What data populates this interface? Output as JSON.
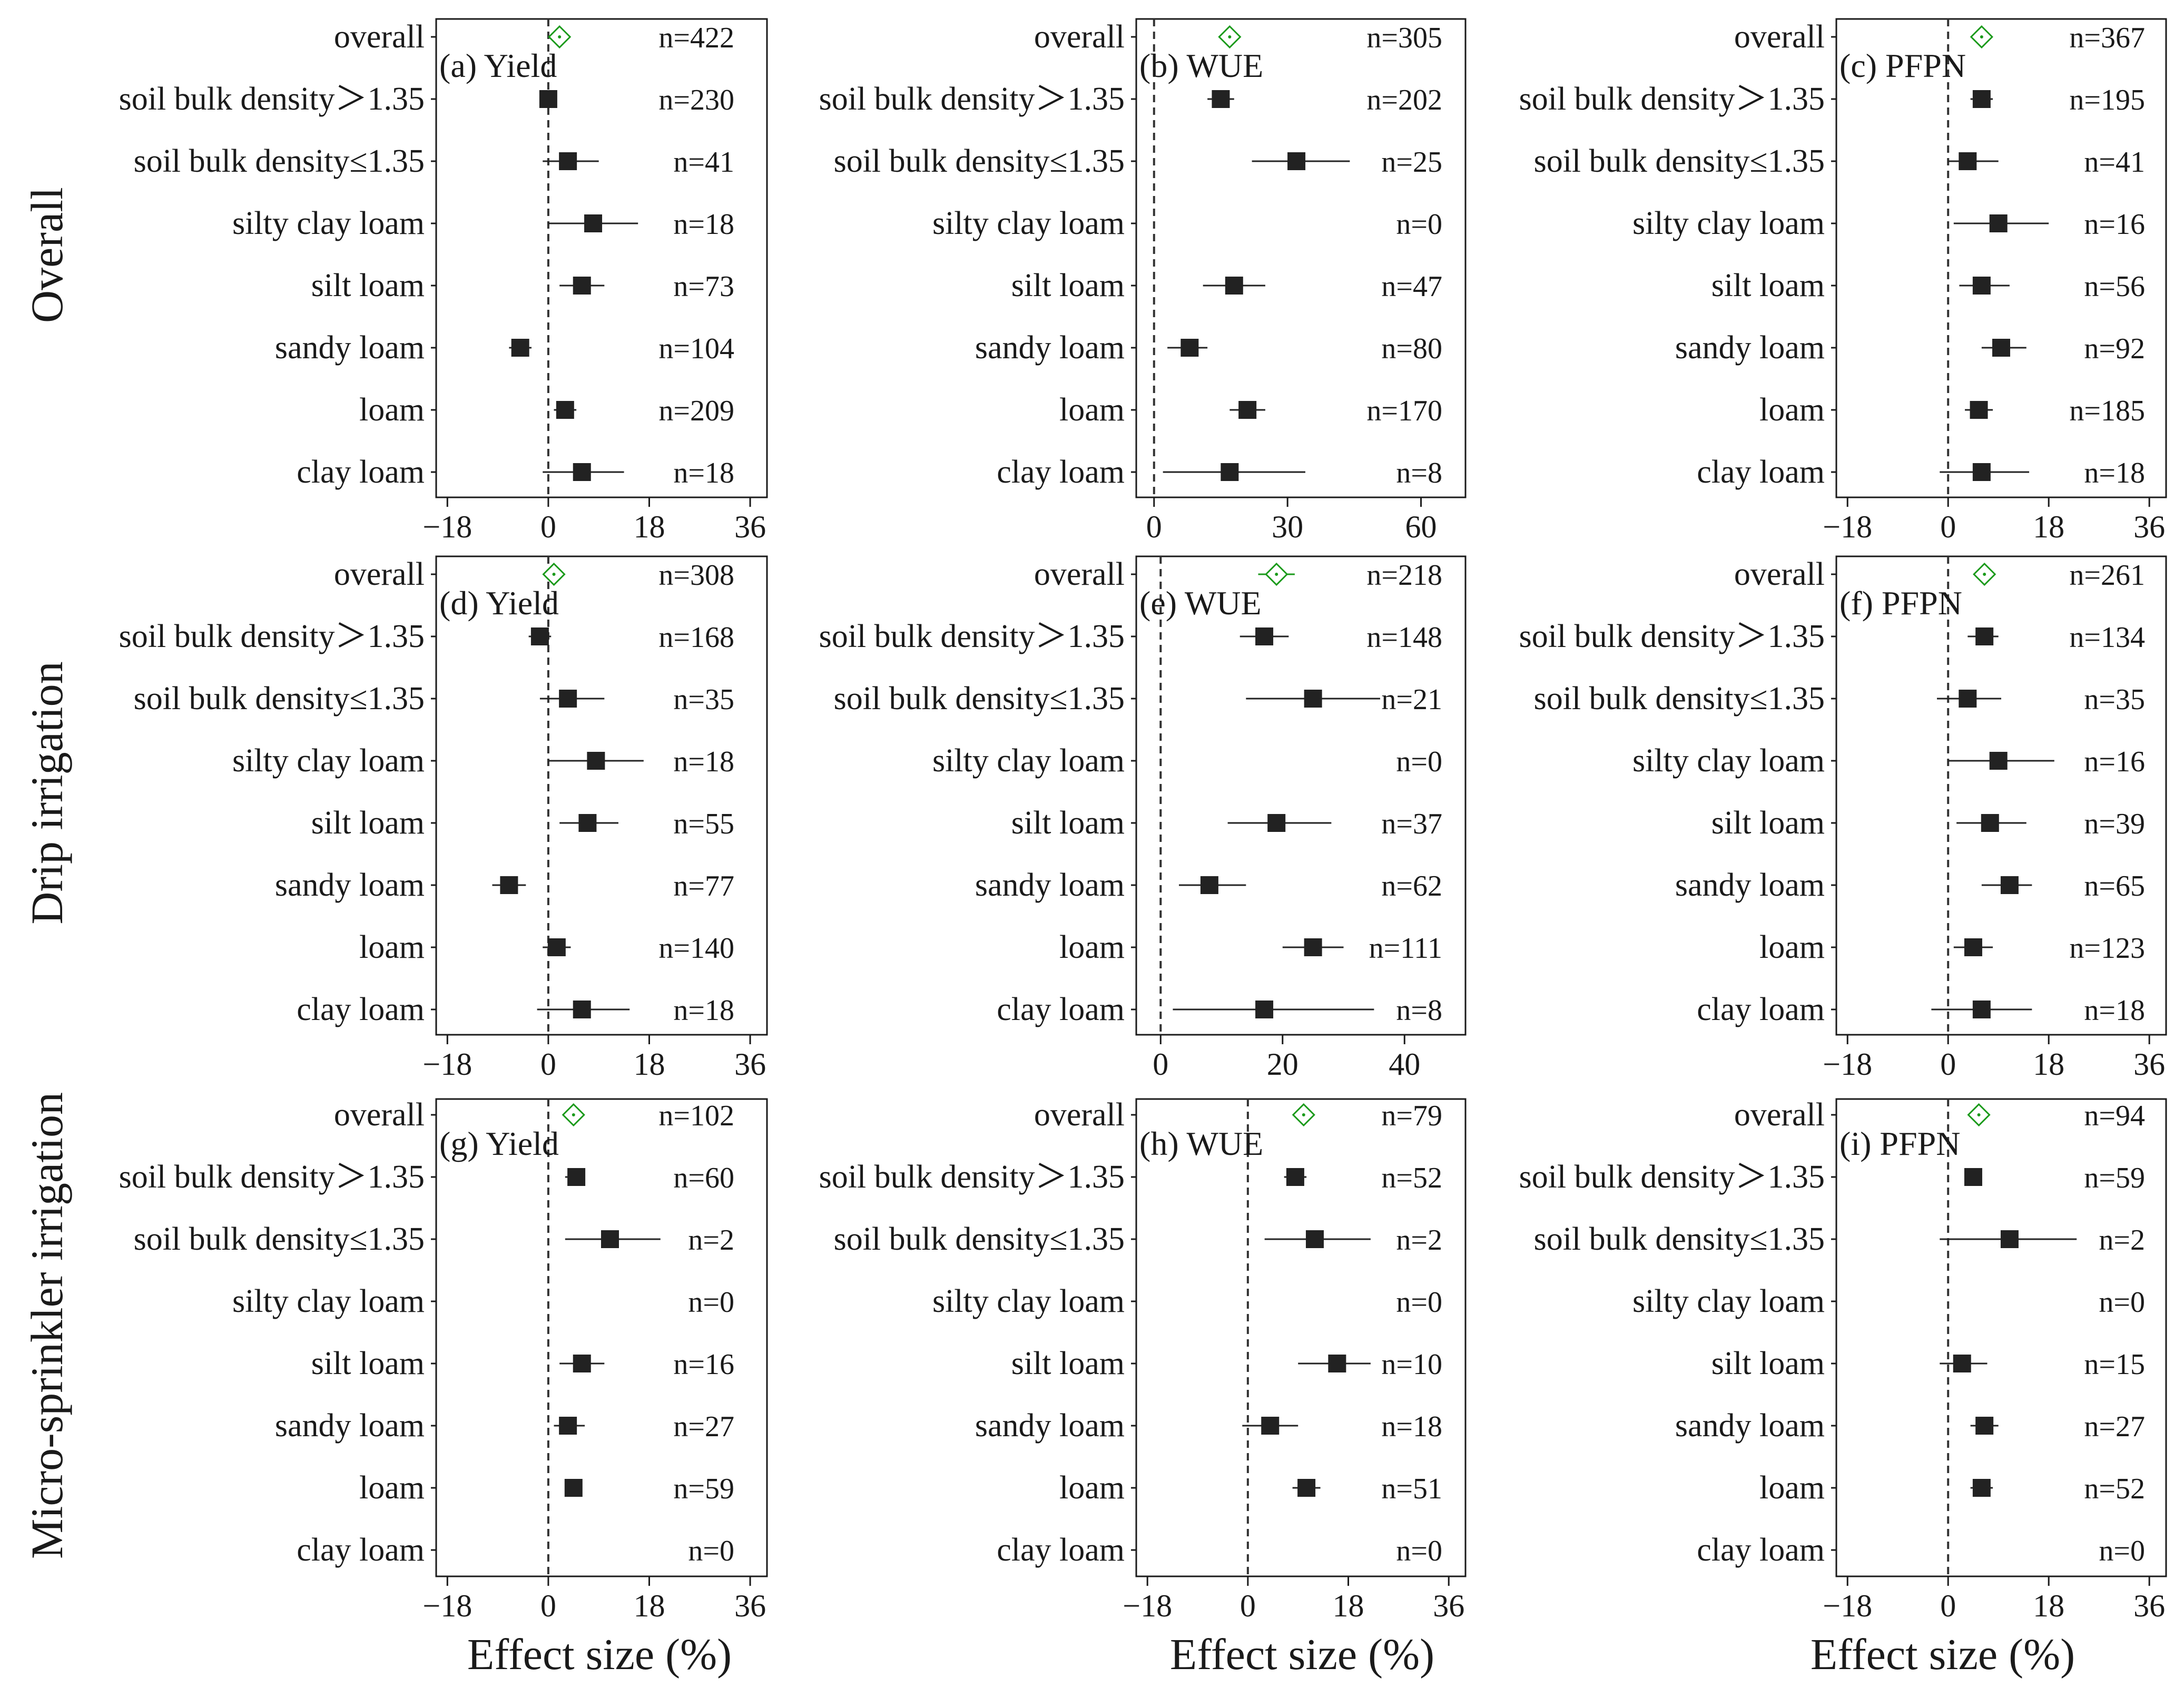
{
  "row_labels": [
    "Overall",
    "Drip irrigation",
    "Micro-sprinkler irrigation"
  ],
  "xlabel": "Effect size (%)",
  "categories": [
    "overall",
    "soil bulk density＞1.35",
    "soil bulk density≤1.35",
    "silty clay loam",
    "silt loam",
    "sandy loam",
    "loam",
    "clay loam"
  ],
  "colors": {
    "point": "#222222",
    "overall": "#1a9a1a",
    "frame": "#1a1a1a"
  },
  "chart_data": [
    {
      "type": "forest",
      "panel_label": "(a) Yield",
      "xlim": [
        -20,
        39
      ],
      "xticks": [
        -18,
        0,
        18,
        36
      ],
      "xtick_labels": [
        "−18",
        "0",
        "18",
        "36"
      ],
      "means": [
        2,
        0,
        3.5,
        8,
        6,
        -5,
        3,
        6
      ],
      "ci_low": [
        0.5,
        -1.5,
        -1,
        0,
        2,
        -7,
        1,
        -1
      ],
      "ci_high": [
        3.5,
        1.5,
        9,
        16,
        10,
        -3,
        5,
        13.5
      ],
      "n": [
        "n=422",
        "n=230",
        "n=41",
        "n=18",
        "n=73",
        "n=104",
        "n=209",
        "n=18"
      ]
    },
    {
      "type": "forest",
      "panel_label": "(b) WUE",
      "xlim": [
        -4,
        70
      ],
      "xticks": [
        0,
        30,
        60
      ],
      "xtick_labels": [
        "0",
        "30",
        "60"
      ],
      "means": [
        17,
        15,
        32,
        null,
        18,
        8,
        21,
        17
      ],
      "ci_low": [
        15,
        12,
        22,
        null,
        11,
        3,
        17,
        2
      ],
      "ci_high": [
        19,
        18,
        44,
        null,
        25,
        12,
        25,
        34
      ],
      "n": [
        "n=305",
        "n=202",
        "n=25",
        "n=0",
        "n=47",
        "n=80",
        "n=170",
        "n=8"
      ]
    },
    {
      "type": "forest",
      "panel_label": "(c) PFPN",
      "xlim": [
        -20,
        39
      ],
      "xticks": [
        -18,
        0,
        18,
        36
      ],
      "xtick_labels": [
        "−18",
        "0",
        "18",
        "36"
      ],
      "means": [
        6,
        6,
        3.5,
        9,
        6,
        9.5,
        5.5,
        6
      ],
      "ci_low": [
        4.5,
        4,
        0,
        1,
        2,
        6,
        3,
        -1.5
      ],
      "ci_high": [
        7.5,
        8,
        9,
        18,
        11,
        14,
        8,
        14.5
      ],
      "n": [
        "n=367",
        "n=195",
        "n=41",
        "n=16",
        "n=56",
        "n=92",
        "n=185",
        "n=18"
      ]
    },
    {
      "type": "forest",
      "panel_label": "(d) Yield",
      "xlim": [
        -20,
        39
      ],
      "xticks": [
        -18,
        0,
        18,
        36
      ],
      "xtick_labels": [
        "−18",
        "0",
        "18",
        "36"
      ],
      "means": [
        1,
        -1.5,
        3.5,
        8.5,
        7,
        -7,
        1.5,
        6
      ],
      "ci_low": [
        -0.5,
        -3.5,
        -1.5,
        0,
        2,
        -10,
        -1,
        -2
      ],
      "ci_high": [
        2.5,
        0.5,
        10,
        17,
        12.5,
        -4,
        4,
        14.5
      ],
      "n": [
        "n=308",
        "n=168",
        "n=35",
        "n=18",
        "n=55",
        "n=77",
        "n=140",
        "n=18"
      ]
    },
    {
      "type": "forest",
      "panel_label": "(e) WUE",
      "xlim": [
        -4,
        50
      ],
      "xticks": [
        0,
        20,
        40
      ],
      "xtick_labels": [
        "0",
        "20",
        "40"
      ],
      "means": [
        19,
        17,
        25,
        null,
        19,
        8,
        25,
        17
      ],
      "ci_low": [
        16,
        13,
        14,
        null,
        11,
        3,
        20,
        2
      ],
      "ci_high": [
        22,
        21,
        36,
        null,
        28,
        14,
        30,
        35
      ],
      "n": [
        "n=218",
        "n=148",
        "n=21",
        "n=0",
        "n=37",
        "n=62",
        "n=111",
        "n=8"
      ]
    },
    {
      "type": "forest",
      "panel_label": "(f) PFPN",
      "xlim": [
        -20,
        39
      ],
      "xticks": [
        -18,
        0,
        18,
        36
      ],
      "xtick_labels": [
        "−18",
        "0",
        "18",
        "36"
      ],
      "means": [
        6.5,
        6.5,
        3.5,
        9,
        7.5,
        11,
        4.5,
        6
      ],
      "ci_low": [
        5,
        3.5,
        -2,
        0,
        1.5,
        6,
        1,
        -3
      ],
      "ci_high": [
        8,
        9,
        9.5,
        19,
        14,
        15,
        8,
        15
      ],
      "n": [
        "n=261",
        "n=134",
        "n=35",
        "n=16",
        "n=39",
        "n=65",
        "n=123",
        "n=18"
      ]
    },
    {
      "type": "forest",
      "panel_label": "(g) Yield",
      "xlim": [
        -20,
        39
      ],
      "xticks": [
        -18,
        0,
        18,
        36
      ],
      "xtick_labels": [
        "−18",
        "0",
        "18",
        "36"
      ],
      "means": [
        4.5,
        5,
        11,
        null,
        6,
        3.5,
        4.5,
        null
      ],
      "ci_low": [
        3,
        3,
        3,
        null,
        2,
        1,
        3,
        null
      ],
      "ci_high": [
        6,
        6.5,
        20,
        null,
        10,
        6.5,
        6,
        null
      ],
      "n": [
        "n=102",
        "n=60",
        "n=2",
        "n=0",
        "n=16",
        "n=27",
        "n=59",
        "n=0"
      ]
    },
    {
      "type": "forest",
      "panel_label": "(h) WUE",
      "xlim": [
        -20,
        39
      ],
      "xticks": [
        -18,
        0,
        18,
        36
      ],
      "xtick_labels": [
        "−18",
        "0",
        "18",
        "36"
      ],
      "means": [
        10,
        8.5,
        12,
        null,
        16,
        4,
        10.5,
        null
      ],
      "ci_low": [
        8.5,
        6.5,
        3,
        null,
        9,
        -1,
        8,
        null
      ],
      "ci_high": [
        11.5,
        10.5,
        22,
        null,
        22,
        9,
        13,
        null
      ],
      "n": [
        "n=79",
        "n=52",
        "n=2",
        "n=0",
        "n=10",
        "n=18",
        "n=51",
        "n=0"
      ]
    },
    {
      "type": "forest",
      "panel_label": "(i) PFPN",
      "xlim": [
        -20,
        39
      ],
      "xticks": [
        -18,
        0,
        18,
        36
      ],
      "xtick_labels": [
        "−18",
        "0",
        "18",
        "36"
      ],
      "means": [
        5.5,
        4.5,
        11,
        null,
        2.5,
        6.5,
        6,
        null
      ],
      "ci_low": [
        4,
        3,
        -1.5,
        null,
        -1.5,
        4,
        4,
        null
      ],
      "ci_high": [
        7,
        6,
        23,
        null,
        7,
        9,
        8,
        null
      ],
      "n": [
        "n=94",
        "n=59",
        "n=2",
        "n=0",
        "n=15",
        "n=27",
        "n=52",
        "n=0"
      ]
    }
  ]
}
